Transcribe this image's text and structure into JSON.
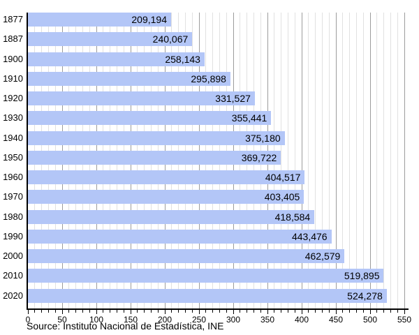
{
  "chart_data": {
    "type": "bar",
    "orientation": "horizontal",
    "title": "",
    "categories": [
      "1877",
      "1887",
      "1900",
      "1910",
      "1920",
      "1930",
      "1940",
      "1950",
      "1960",
      "1970",
      "1980",
      "1990",
      "2000",
      "2010",
      "2020"
    ],
    "values": [
      209194,
      240067,
      258143,
      295898,
      331527,
      355441,
      375180,
      369722,
      404517,
      403405,
      418584,
      443476,
      462579,
      519895,
      524278
    ],
    "value_labels": [
      "209,194",
      "240,067",
      "258,143",
      "295,898",
      "331,527",
      "355,441",
      "375,180",
      "369,722",
      "404,517",
      "403,405",
      "418,584",
      "443,476",
      "462,579",
      "519,895",
      "524,278"
    ],
    "x_tick_labels": [
      "0",
      "50",
      "100",
      "150",
      "200",
      "250",
      "300",
      "350",
      "400",
      "450",
      "500",
      "550"
    ],
    "xlim": [
      0,
      550
    ],
    "minor_grid_step": 10,
    "major_grid_step": 50,
    "grid": true,
    "legend": false,
    "source": "Source: Instituto Nacional de Estadística, INE",
    "colors": {
      "bar_fill": "#b3c6f7",
      "minor_gridline": "#e1e1e1",
      "major_gridline": "#9c9c9c",
      "axis": "#000000",
      "text": "#000000"
    }
  }
}
